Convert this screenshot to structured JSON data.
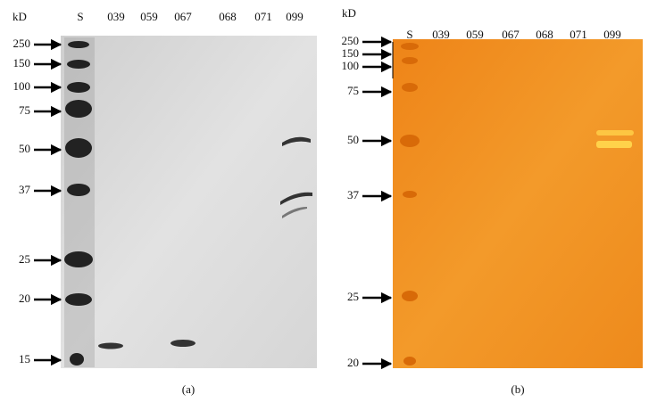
{
  "panels": [
    {
      "unit": "kD",
      "lanes": [
        "S",
        "039",
        "059",
        "067",
        "068",
        "071",
        "099"
      ],
      "markers": [
        250,
        150,
        100,
        75,
        50,
        37,
        25,
        20,
        15
      ],
      "caption": "(a)"
    },
    {
      "unit": "kD",
      "lanes": [
        "S",
        "039",
        "059",
        "067",
        "068",
        "071",
        "099"
      ],
      "markers": [
        250,
        150,
        100,
        75,
        50,
        37,
        25,
        20
      ],
      "caption": "(b)"
    }
  ]
}
